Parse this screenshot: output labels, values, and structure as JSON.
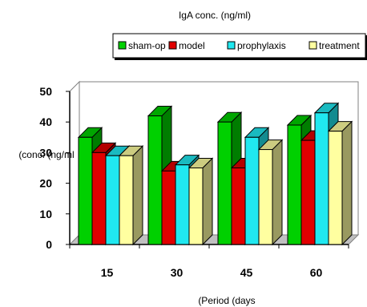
{
  "chart_data": {
    "type": "bar",
    "title": "IgA conc. (ng/ml)",
    "xlabel": "(Period (days",
    "ylabel": "(conc. (ng/ml",
    "categories": [
      "15",
      "30",
      "45",
      "60"
    ],
    "ylim": [
      0,
      50
    ],
    "yticks": [
      0,
      10,
      20,
      30,
      40,
      50
    ],
    "grid": false,
    "legend_position": "top",
    "series": [
      {
        "name": "sham-op",
        "color": "#00d000",
        "values": [
          35,
          42,
          40,
          39
        ]
      },
      {
        "name": "model",
        "color": "#e00000",
        "values": [
          30,
          24,
          25,
          34
        ]
      },
      {
        "name": "prophylaxis",
        "color": "#20e8f0",
        "values": [
          29,
          26,
          35,
          43
        ]
      },
      {
        "name": "treatment",
        "color": "#ffffa0",
        "values": [
          29,
          25,
          31,
          37
        ]
      }
    ]
  }
}
